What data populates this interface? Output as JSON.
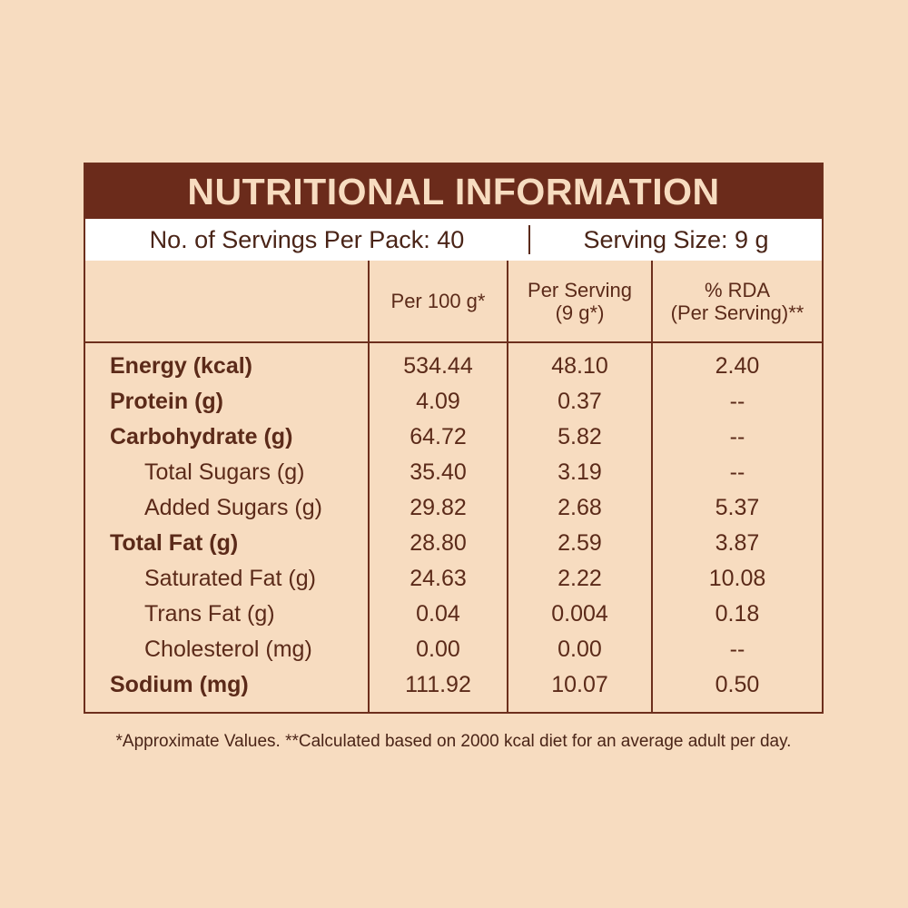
{
  "title": "NUTRITIONAL INFORMATION",
  "servings_per_pack": "No. of Servings Per Pack: 40",
  "serving_size": "Serving Size: 9 g",
  "columns": {
    "per100": [
      "Per 100 g*"
    ],
    "per_serving": [
      "Per Serving",
      "(9 g*)"
    ],
    "rda": [
      "% RDA",
      "(Per Serving)**"
    ]
  },
  "rows": [
    {
      "label": "Energy (kcal)",
      "per100": "534.44",
      "serving": "48.10",
      "rda": "2.40"
    },
    {
      "label": "Protein (g)",
      "per100": "4.09",
      "serving": "0.37",
      "rda": "--"
    },
    {
      "label": "Carbohydrate (g)",
      "per100": "64.72",
      "serving": "5.82",
      "rda": "--"
    },
    {
      "label": "Total Sugars (g)",
      "per100": "35.40",
      "serving": "3.19",
      "rda": "--"
    },
    {
      "label": "Added Sugars (g)",
      "per100": "29.82",
      "serving": "2.68",
      "rda": "5.37"
    },
    {
      "label": "Total Fat (g)",
      "per100": "28.80",
      "serving": "2.59",
      "rda": "3.87"
    },
    {
      "label": "Saturated Fat (g)",
      "per100": "24.63",
      "serving": "2.22",
      "rda": "10.08"
    },
    {
      "label": "Trans Fat (g)",
      "per100": "0.04",
      "serving": "0.004",
      "rda": "0.18"
    },
    {
      "label": "Cholesterol (mg)",
      "per100": "0.00",
      "serving": "0.00",
      "rda": "--"
    },
    {
      "label": "Sodium (mg)",
      "per100": "111.92",
      "serving": "10.07",
      "rda": "0.50"
    }
  ],
  "footnote": "*Approximate Values. **Calculated based on 2000 kcal diet for an average adult per day.",
  "colors": {
    "background": "#f7dcc0",
    "title_bar": "#6b2b1b",
    "text": "#5b2a19"
  }
}
